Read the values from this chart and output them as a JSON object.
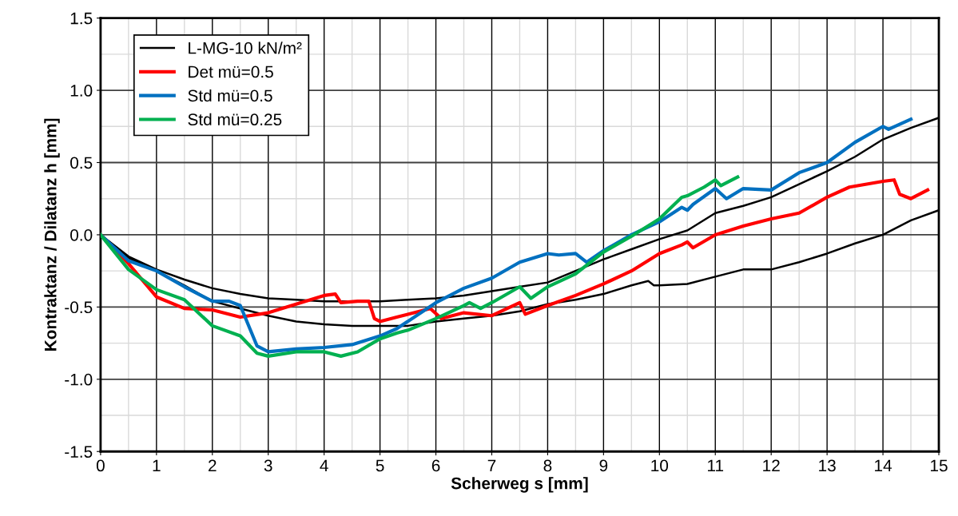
{
  "chart_data": {
    "type": "line",
    "xlabel": "Scherweg s [mm]",
    "ylabel": "Kontraktanz / Dilatanz h [mm]",
    "xlim": [
      0,
      15
    ],
    "ylim": [
      -1.5,
      1.5
    ],
    "xticks": [
      0,
      1,
      2,
      3,
      4,
      5,
      6,
      7,
      8,
      9,
      10,
      11,
      12,
      13,
      14,
      15
    ],
    "yticks": [
      {
        "value": -1.5,
        "label": "-1.5"
      },
      {
        "value": -1.0,
        "label": "-1.0"
      },
      {
        "value": -0.5,
        "label": "-0.5"
      },
      {
        "value": 0.0,
        "label": "0.0"
      },
      {
        "value": 0.5,
        "label": "0.5"
      },
      {
        "value": 1.0,
        "label": "1.0"
      },
      {
        "value": 1.5,
        "label": "1.5"
      }
    ],
    "grid": true,
    "legend": "top left",
    "marker": "none",
    "line_style": "solid",
    "series": [
      {
        "name": "L-MG-10 kN/m²",
        "color": "#000000",
        "x": [
          0,
          0.5,
          1,
          1.5,
          2,
          2.5,
          3,
          3.5,
          4,
          4.5,
          5,
          5.5,
          6,
          6.5,
          7,
          7.5,
          8,
          8.5,
          9,
          9.5,
          10,
          10.5,
          11,
          11.5,
          12,
          12.5,
          13,
          13.5,
          14,
          14.5,
          15
        ],
        "values": [
          0,
          -0.15,
          -0.24,
          -0.31,
          -0.37,
          -0.41,
          -0.44,
          -0.45,
          -0.46,
          -0.46,
          -0.46,
          -0.45,
          -0.44,
          -0.42,
          -0.39,
          -0.36,
          -0.33,
          -0.25,
          -0.17,
          -0.1,
          -0.03,
          0.03,
          0.15,
          0.2,
          0.26,
          0.35,
          0.44,
          0.54,
          0.66,
          0.74,
          0.81
        ]
      },
      {
        "color": "#000000",
        "x": [
          0,
          0.5,
          1,
          1.5,
          2,
          2.5,
          3,
          3.5,
          4,
          4.5,
          5,
          5.5,
          6,
          6.5,
          7,
          7.5,
          8,
          8.5,
          9,
          9.5,
          9.8,
          9.9,
          10,
          10.5,
          11,
          11.5,
          12,
          12.5,
          13,
          13.5,
          14,
          14.5,
          15
        ],
        "values": [
          0,
          -0.16,
          -0.25,
          -0.35,
          -0.46,
          -0.51,
          -0.56,
          -0.6,
          -0.62,
          -0.63,
          -0.63,
          -0.63,
          -0.6,
          -0.58,
          -0.56,
          -0.53,
          -0.48,
          -0.45,
          -0.41,
          -0.35,
          -0.32,
          -0.35,
          -0.35,
          -0.34,
          -0.29,
          -0.24,
          -0.24,
          -0.19,
          -0.13,
          -0.06,
          0.0,
          0.1,
          0.17
        ]
      },
      {
        "name": "Det mü=0.5",
        "color": "#ff0000",
        "x": [
          0,
          0.5,
          1,
          1.5,
          2,
          2.5,
          3,
          3.5,
          4,
          4.2,
          4.3,
          4.6,
          4.8,
          4.9,
          5,
          5.3,
          5.9,
          6.1,
          6.5,
          7,
          7.5,
          7.6,
          8,
          8.5,
          9,
          9.5,
          10,
          10.4,
          10.5,
          10.6,
          11,
          11.5,
          12,
          12.5,
          13,
          13.4,
          14,
          14.2,
          14.3,
          14.5,
          14.8
        ],
        "values": [
          0,
          -0.2,
          -0.43,
          -0.51,
          -0.52,
          -0.57,
          -0.54,
          -0.48,
          -0.42,
          -0.41,
          -0.47,
          -0.46,
          -0.46,
          -0.58,
          -0.6,
          -0.57,
          -0.51,
          -0.58,
          -0.54,
          -0.56,
          -0.47,
          -0.55,
          -0.49,
          -0.42,
          -0.34,
          -0.25,
          -0.13,
          -0.07,
          -0.05,
          -0.09,
          0.0,
          0.06,
          0.11,
          0.15,
          0.26,
          0.33,
          0.37,
          0.38,
          0.28,
          0.25,
          0.31
        ]
      },
      {
        "name": "Std mü=0.5",
        "color": "#0070c0",
        "x": [
          0,
          0.5,
          1,
          1.5,
          2,
          2.3,
          2.5,
          2.8,
          3,
          3.5,
          4,
          4.5,
          5,
          5.3,
          6,
          6.5,
          7,
          7.5,
          8,
          8.2,
          8.5,
          8.7,
          9,
          9.5,
          10,
          10.4,
          10.5,
          10.6,
          11,
          11.2,
          11.5,
          12,
          12.5,
          13,
          13.5,
          14,
          14.1,
          14.5
        ],
        "values": [
          0,
          -0.18,
          -0.25,
          -0.36,
          -0.46,
          -0.46,
          -0.49,
          -0.77,
          -0.81,
          -0.79,
          -0.78,
          -0.76,
          -0.7,
          -0.65,
          -0.47,
          -0.37,
          -0.3,
          -0.19,
          -0.13,
          -0.14,
          -0.13,
          -0.19,
          -0.11,
          0.0,
          0.09,
          0.19,
          0.17,
          0.21,
          0.32,
          0.25,
          0.32,
          0.31,
          0.43,
          0.5,
          0.64,
          0.75,
          0.73,
          0.8
        ]
      },
      {
        "name": "Std mü=0.25",
        "color": "#00b050",
        "x": [
          0,
          0.5,
          1,
          1.5,
          2,
          2.5,
          2.8,
          3,
          3.5,
          4,
          4.3,
          4.6,
          5,
          5.3,
          5.5,
          6,
          6.5,
          6.6,
          6.8,
          7,
          7.5,
          7.7,
          8,
          8.5,
          9,
          9.5,
          10,
          10.4,
          10.5,
          10.8,
          11,
          11.1,
          11.4
        ],
        "values": [
          0,
          -0.24,
          -0.38,
          -0.45,
          -0.63,
          -0.7,
          -0.82,
          -0.84,
          -0.81,
          -0.81,
          -0.84,
          -0.81,
          -0.72,
          -0.68,
          -0.66,
          -0.58,
          -0.49,
          -0.47,
          -0.51,
          -0.47,
          -0.36,
          -0.44,
          -0.36,
          -0.27,
          -0.12,
          -0.01,
          0.11,
          0.26,
          0.27,
          0.33,
          0.38,
          0.34,
          0.4
        ]
      }
    ]
  }
}
